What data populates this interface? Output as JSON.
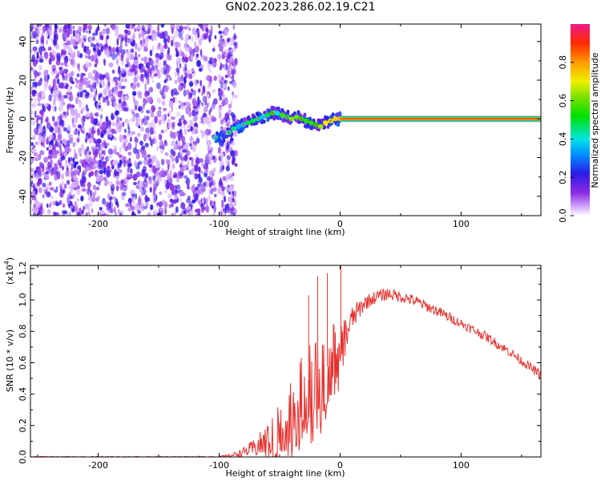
{
  "figure_title": "GN02.2023.286.02.19.C21",
  "chart_data": [
    {
      "type": "heatmap",
      "title": "",
      "xlabel": "Height of straight line (km)",
      "ylabel": "Frequency (Hz)",
      "xlim": [
        -256,
        166
      ],
      "ylim": [
        -50,
        49
      ],
      "xticks": [
        -200,
        -100,
        0,
        100
      ],
      "yticks": [
        -40,
        -20,
        0,
        20,
        40
      ],
      "grid": false,
      "regions": {
        "noise_span_km": [
          -256,
          -86
        ],
        "noise_gap_km": [
          -103,
          -100
        ],
        "signal_trace": {
          "x": [
            -103,
            -100,
            -96,
            -92,
            -88,
            -84,
            -80,
            -76,
            -72,
            -68,
            -64,
            -60,
            -56,
            -52,
            -48,
            -44,
            -40,
            -36,
            -32,
            -28,
            -24,
            -20,
            -16,
            -12,
            -8,
            -4,
            0
          ],
          "freq": [
            -10,
            -11,
            -9,
            -7,
            -5,
            -4,
            -3,
            -2,
            -1,
            0,
            1,
            2,
            3,
            3,
            2,
            1,
            0,
            1,
            0,
            -1,
            -2,
            -3,
            -4,
            -2,
            -1,
            0,
            0
          ]
        },
        "steady_carrier": {
          "x_start": 0,
          "x_end": 166,
          "freq": 0
        }
      },
      "colorbar": {
        "label": "Normalized spectral amplitude",
        "range": [
          0.0,
          1.0
        ],
        "ticks": [
          "0.0",
          "0.2",
          "0.4",
          "0.6",
          "0.8"
        ],
        "tick_values": [
          0.0,
          0.2,
          0.4,
          0.6,
          0.8
        ]
      }
    },
    {
      "type": "line",
      "title": "",
      "xlabel": "Height of straight line (km)",
      "ylabel": "SNR (10 * v/v)",
      "scale_label": "(x10",
      "scale_exponent": "4",
      "scale_close": ")",
      "xlim": [
        -256,
        166
      ],
      "ylim": [
        0.0,
        1.22
      ],
      "xticks": [
        -200,
        -100,
        0,
        100
      ],
      "yticks": [
        "0.0",
        "0.2",
        "0.4",
        "0.6",
        "0.8",
        "1.0",
        "1.2"
      ],
      "ytick_values": [
        0.0,
        0.2,
        0.4,
        0.6,
        0.8,
        1.0,
        1.2
      ],
      "grid": false,
      "series_color": "#e8312f",
      "envelope": {
        "x": [
          -256,
          -200,
          -150,
          -100,
          -90,
          -80,
          -70,
          -60,
          -50,
          -40,
          -30,
          -20,
          -10,
          0,
          10,
          20,
          30,
          40,
          60,
          80,
          100,
          120,
          140,
          166
        ],
        "base": [
          0.0,
          0.0,
          0.0,
          0.0,
          0.01,
          0.03,
          0.06,
          0.1,
          0.2,
          0.28,
          0.38,
          0.48,
          0.58,
          0.68,
          0.88,
          0.98,
          1.02,
          1.04,
          1.0,
          0.93,
          0.85,
          0.77,
          0.67,
          0.52
        ],
        "noise": [
          0.004,
          0.004,
          0.004,
          0.006,
          0.01,
          0.03,
          0.06,
          0.12,
          0.18,
          0.24,
          0.28,
          0.3,
          0.28,
          0.18,
          0.08,
          0.05,
          0.04,
          0.04,
          0.035,
          0.035,
          0.03,
          0.03,
          0.03,
          0.03
        ]
      },
      "peaks": [
        {
          "x": 0.6,
          "y": 1.22
        },
        {
          "x": -10.5,
          "y": 1.17
        },
        {
          "x": -18.5,
          "y": 1.15
        },
        {
          "x": -26,
          "y": 1.03
        }
      ]
    }
  ]
}
